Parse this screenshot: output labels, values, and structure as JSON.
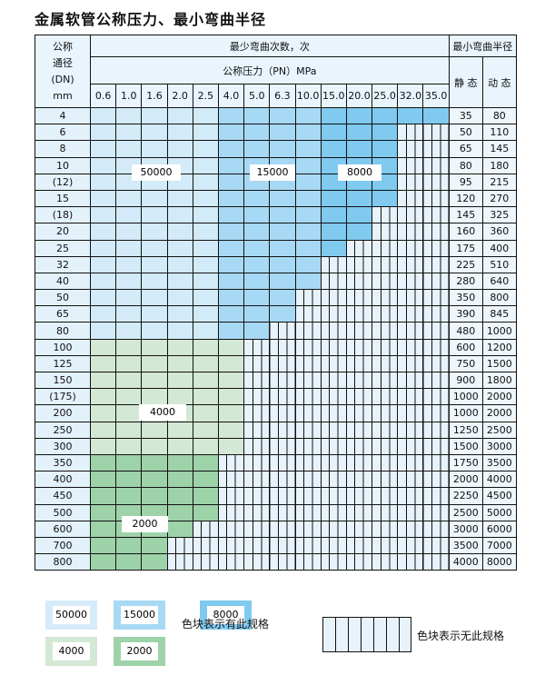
{
  "title": "金属软管公称压力、最小弯曲半径",
  "header": {
    "dn_label": [
      "公称",
      "通径",
      "(DN)",
      "mm"
    ],
    "cycles_label": "最少弯曲次数，次",
    "radius_label": "最小弯曲半径",
    "pressure_label": "公称压力（PN）MPa",
    "static_label": "静 态",
    "dynamic_label": "动 态",
    "pressures": [
      "0.6",
      "1.0",
      "1.6",
      "2.0",
      "2.5",
      "4.0",
      "5.0",
      "6.3",
      "10.0",
      "15.0",
      "20.0",
      "25.0",
      "32.0",
      "35.0"
    ]
  },
  "colors": {
    "c50000": "#d3eaf9",
    "c15000": "#a8d9f4",
    "c8000": "#80c9ef",
    "c4000": "#d3e8d5",
    "c2000": "#9ed2a9"
  },
  "rows": [
    {
      "dn": "4",
      "static": "35",
      "dynamic": "80",
      "avail": 14,
      "group": "blue"
    },
    {
      "dn": "6",
      "static": "50",
      "dynamic": "110",
      "avail": 12,
      "group": "blue"
    },
    {
      "dn": "8",
      "static": "65",
      "dynamic": "145",
      "avail": 12,
      "group": "blue"
    },
    {
      "dn": "10",
      "static": "80",
      "dynamic": "180",
      "avail": 12,
      "group": "blue"
    },
    {
      "dn": "(12)",
      "static": "95",
      "dynamic": "215",
      "avail": 12,
      "group": "blue"
    },
    {
      "dn": "15",
      "static": "120",
      "dynamic": "270",
      "avail": 12,
      "group": "blue"
    },
    {
      "dn": "(18)",
      "static": "145",
      "dynamic": "325",
      "avail": 11,
      "group": "blue"
    },
    {
      "dn": "20",
      "static": "160",
      "dynamic": "360",
      "avail": 11,
      "group": "blue"
    },
    {
      "dn": "25",
      "static": "175",
      "dynamic": "400",
      "avail": 10,
      "group": "blue"
    },
    {
      "dn": "32",
      "static": "225",
      "dynamic": "510",
      "avail": 9,
      "group": "blue"
    },
    {
      "dn": "40",
      "static": "280",
      "dynamic": "640",
      "avail": 9,
      "group": "blue"
    },
    {
      "dn": "50",
      "static": "350",
      "dynamic": "800",
      "avail": 8,
      "group": "blue"
    },
    {
      "dn": "65",
      "static": "390",
      "dynamic": "845",
      "avail": 8,
      "group": "blue"
    },
    {
      "dn": "80",
      "static": "480",
      "dynamic": "1000",
      "avail": 7,
      "group": "blue"
    },
    {
      "dn": "100",
      "static": "600",
      "dynamic": "1200",
      "avail": 6,
      "group": "c4000"
    },
    {
      "dn": "125",
      "static": "750",
      "dynamic": "1500",
      "avail": 6,
      "group": "c4000"
    },
    {
      "dn": "150",
      "static": "900",
      "dynamic": "1800",
      "avail": 6,
      "group": "c4000"
    },
    {
      "dn": "(175)",
      "static": "1000",
      "dynamic": "2000",
      "avail": 6,
      "group": "c4000"
    },
    {
      "dn": "200",
      "static": "1000",
      "dynamic": "2000",
      "avail": 6,
      "group": "c4000"
    },
    {
      "dn": "250",
      "static": "1250",
      "dynamic": "2500",
      "avail": 6,
      "group": "c4000"
    },
    {
      "dn": "300",
      "static": "1500",
      "dynamic": "3000",
      "avail": 6,
      "group": "c4000"
    },
    {
      "dn": "350",
      "static": "1750",
      "dynamic": "3500",
      "avail": 5,
      "group": "c2000"
    },
    {
      "dn": "400",
      "static": "2000",
      "dynamic": "4000",
      "avail": 5,
      "group": "c2000"
    },
    {
      "dn": "450",
      "static": "2250",
      "dynamic": "4500",
      "avail": 5,
      "group": "c2000"
    },
    {
      "dn": "500",
      "static": "2500",
      "dynamic": "5000",
      "avail": 5,
      "group": "c2000"
    },
    {
      "dn": "600",
      "static": "3000",
      "dynamic": "6000",
      "avail": 4,
      "group": "c2000"
    },
    {
      "dn": "700",
      "static": "3500",
      "dynamic": "7000",
      "avail": 3,
      "group": "c2000"
    },
    {
      "dn": "800",
      "static": "4000",
      "dynamic": "8000",
      "avail": 3,
      "group": "c2000"
    }
  ],
  "overlay": {
    "l50000": "50000",
    "l15000": "15000",
    "l8000": "8000",
    "l4000": "4000",
    "l2000": "2000"
  },
  "legend": {
    "items": [
      "50000",
      "15000",
      "8000",
      "4000",
      "2000"
    ],
    "available_text": "色块表示有此规格",
    "unavailable_text": "色块表示无此规格"
  }
}
